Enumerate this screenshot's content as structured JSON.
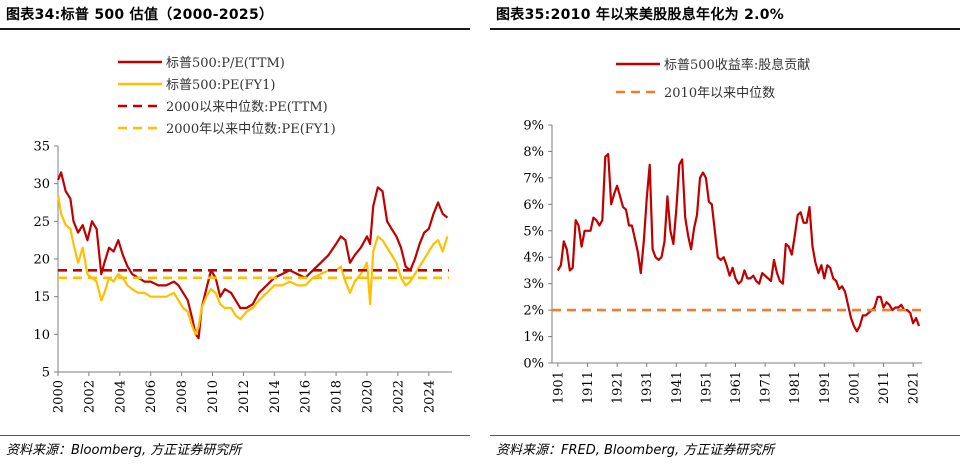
{
  "chart_data": [
    {
      "type": "line",
      "title": "图表34:标普 500 估值（2000-2025）",
      "source": "资料来源：Bloomberg, 方正证券研究所",
      "xlabel": "",
      "ylabel": "",
      "xlim": [
        2000,
        2025.5
      ],
      "ylim": [
        5,
        35
      ],
      "x_ticks": [
        "2000",
        "2002",
        "2004",
        "2006",
        "2008",
        "2010",
        "2012",
        "2014",
        "2016",
        "2018",
        "2020",
        "2022",
        "2024"
      ],
      "y_ticks": [
        "5",
        "10",
        "15",
        "20",
        "25",
        "30",
        "35"
      ],
      "grid": false,
      "legend_position": "top-left",
      "series": [
        {
          "name": "标普500:P/E(TTM)",
          "color": "#C00000",
          "style": "solid",
          "x": [
            2000,
            2000.2,
            2000.5,
            2000.8,
            2001,
            2001.3,
            2001.6,
            2001.9,
            2002.2,
            2002.5,
            2002.8,
            2003,
            2003.3,
            2003.6,
            2003.9,
            2004.2,
            2004.5,
            2004.8,
            2005.2,
            2005.6,
            2006,
            2006.5,
            2007,
            2007.5,
            2007.8,
            2008.1,
            2008.4,
            2008.7,
            2008.9,
            2009.1,
            2009.3,
            2009.6,
            2009.9,
            2010.2,
            2010.5,
            2010.8,
            2011.2,
            2011.5,
            2011.8,
            2012.2,
            2012.6,
            2013,
            2013.5,
            2014,
            2014.5,
            2015,
            2015.5,
            2016,
            2016.5,
            2017,
            2017.5,
            2018,
            2018.3,
            2018.6,
            2018.9,
            2019.2,
            2019.6,
            2020,
            2020.2,
            2020.4,
            2020.7,
            2021,
            2021.3,
            2021.6,
            2021.9,
            2022.2,
            2022.5,
            2022.8,
            2023.1,
            2023.4,
            2023.7,
            2024,
            2024.3,
            2024.6,
            2024.9,
            2025.2
          ],
          "values": [
            30.5,
            31.5,
            29,
            28,
            25,
            23.5,
            24.5,
            22.5,
            25,
            24,
            18,
            19.5,
            21.5,
            21,
            22.5,
            20.5,
            19,
            18,
            17.5,
            17,
            17,
            16.5,
            16.5,
            17,
            16.5,
            15.5,
            14.5,
            12,
            10,
            9.5,
            13.5,
            16,
            18.5,
            17.5,
            15,
            16,
            15.5,
            14.5,
            13.5,
            13.5,
            14,
            15.5,
            16.5,
            17.5,
            18,
            18.5,
            18,
            17.5,
            18.5,
            19.5,
            20.5,
            22,
            23,
            22.5,
            19.5,
            20.5,
            21.5,
            23,
            22,
            27,
            29.5,
            29,
            25,
            24,
            23,
            21.5,
            19,
            18.5,
            20,
            22,
            23.5,
            24,
            26,
            27.5,
            26,
            25.5
          ]
        },
        {
          "name": "标普500:PE(FY1)",
          "color": "#FFC000",
          "style": "solid",
          "x": [
            2000,
            2000.2,
            2000.5,
            2000.8,
            2001,
            2001.3,
            2001.6,
            2001.9,
            2002.2,
            2002.5,
            2002.8,
            2003,
            2003.3,
            2003.6,
            2003.9,
            2004.2,
            2004.5,
            2004.8,
            2005.2,
            2005.6,
            2006,
            2006.5,
            2007,
            2007.5,
            2007.8,
            2008.1,
            2008.4,
            2008.7,
            2008.9,
            2009.1,
            2009.3,
            2009.6,
            2009.9,
            2010.2,
            2010.5,
            2010.8,
            2011.2,
            2011.5,
            2011.8,
            2012.2,
            2012.6,
            2013,
            2013.5,
            2014,
            2014.5,
            2015,
            2015.5,
            2016,
            2016.5,
            2017,
            2017.5,
            2018,
            2018.3,
            2018.6,
            2018.9,
            2019.2,
            2019.6,
            2020,
            2020.2,
            2020.4,
            2020.7,
            2021,
            2021.3,
            2021.6,
            2021.9,
            2022.2,
            2022.5,
            2022.8,
            2023.1,
            2023.4,
            2023.7,
            2024,
            2024.3,
            2024.6,
            2024.9,
            2025.2
          ],
          "values": [
            28.5,
            26,
            24.5,
            24,
            22,
            19.5,
            21.5,
            18,
            17.5,
            17,
            14.5,
            15.5,
            17.5,
            17,
            18,
            17.5,
            16.5,
            16,
            15.5,
            15.5,
            15,
            15,
            15,
            15.5,
            14.5,
            13.5,
            13,
            11,
            10,
            11,
            13.5,
            15,
            16,
            15.5,
            14,
            13.5,
            13.5,
            12.5,
            12,
            13,
            13.5,
            14.5,
            15.5,
            16.5,
            16.5,
            17,
            16.5,
            16.5,
            17.5,
            18,
            18.5,
            18.5,
            19,
            17,
            15.5,
            17,
            18,
            19.5,
            14,
            21,
            23,
            22.5,
            21.5,
            20.5,
            19.5,
            17.5,
            16.5,
            17,
            18,
            19,
            20,
            21,
            22,
            22.5,
            21,
            23
          ]
        },
        {
          "name": "2000以来中位数:PE(TTM)",
          "color": "#C00000",
          "style": "dashed",
          "x": [
            2000,
            2025.3
          ],
          "values": [
            18.5,
            18.5
          ]
        },
        {
          "name": "2000年以来中位数:PE(FY1)",
          "color": "#FFC000",
          "style": "dashed",
          "x": [
            2000,
            2025.3
          ],
          "values": [
            17.5,
            17.5
          ]
        }
      ]
    },
    {
      "type": "line",
      "title": "图表35:2010 年以来美股股息年化为 2.0%",
      "source": "资料来源：FRED, Bloomberg, 方正证券研究所",
      "xlabel": "",
      "ylabel": "",
      "xlim": [
        1899,
        2024
      ],
      "ylim": [
        0,
        9
      ],
      "x_ticks": [
        "1901",
        "1911",
        "1921",
        "1931",
        "1941",
        "1951",
        "1961",
        "1971",
        "1981",
        "1991",
        "2001",
        "2011",
        "2021"
      ],
      "y_ticks": [
        "0%",
        "1%",
        "2%",
        "3%",
        "4%",
        "5%",
        "6%",
        "7%",
        "8%",
        "9%"
      ],
      "grid": false,
      "legend_position": "top-center",
      "series": [
        {
          "name": "标普500收益率:股息贡献",
          "color": "#C00000",
          "style": "solid",
          "x": [
            1901,
            1902,
            1903,
            1904,
            1905,
            1906,
            1907,
            1908,
            1909,
            1910,
            1911,
            1912,
            1913,
            1914,
            1915,
            1916,
            1917,
            1918,
            1919,
            1920,
            1921,
            1922,
            1923,
            1924,
            1925,
            1926,
            1927,
            1928,
            1929,
            1930,
            1931,
            1932,
            1933,
            1934,
            1935,
            1936,
            1937,
            1938,
            1939,
            1940,
            1941,
            1942,
            1943,
            1944,
            1945,
            1946,
            1947,
            1948,
            1949,
            1950,
            1951,
            1952,
            1953,
            1954,
            1955,
            1956,
            1957,
            1958,
            1959,
            1960,
            1961,
            1962,
            1963,
            1964,
            1965,
            1966,
            1967,
            1968,
            1969,
            1970,
            1971,
            1972,
            1973,
            1974,
            1975,
            1976,
            1977,
            1978,
            1979,
            1980,
            1981,
            1982,
            1983,
            1984,
            1985,
            1986,
            1987,
            1988,
            1989,
            1990,
            1991,
            1992,
            1993,
            1994,
            1995,
            1996,
            1997,
            1998,
            1999,
            2000,
            2001,
            2002,
            2003,
            2004,
            2005,
            2006,
            2007,
            2008,
            2009,
            2010,
            2011,
            2012,
            2013,
            2014,
            2015,
            2016,
            2017,
            2018,
            2019,
            2020,
            2021,
            2022,
            2023
          ],
          "values": [
            3.5,
            3.7,
            4.6,
            4.3,
            3.5,
            3.6,
            5.4,
            5.2,
            4.4,
            5,
            5,
            5,
            5.5,
            5.4,
            5.2,
            5.4,
            7.8,
            7.9,
            6,
            6.4,
            6.7,
            6.3,
            5.9,
            5.8,
            5.2,
            5.2,
            4.7,
            4.2,
            3.4,
            4.6,
            6.2,
            7.5,
            4.3,
            4,
            3.9,
            4,
            4.6,
            6.3,
            5,
            4.5,
            5.8,
            7.5,
            7.7,
            5.5,
            4.8,
            4.3,
            5.1,
            5.6,
            7,
            7.2,
            7,
            6.1,
            6,
            5,
            4,
            3.9,
            4,
            3.7,
            3.3,
            3.6,
            3.2,
            3,
            3.1,
            3.5,
            3.2,
            3.2,
            3.3,
            3.1,
            3,
            3.4,
            3.3,
            3.2,
            3.1,
            3.9,
            3.4,
            3.1,
            3,
            4.5,
            4.4,
            4.1,
            4.8,
            5.6,
            5.7,
            5.3,
            5.3,
            5.9,
            4.4,
            3.8,
            3.4,
            3.7,
            3.2,
            3.7,
            3.6,
            3.2,
            3.1,
            2.8,
            2.9,
            2.7,
            2.2,
            1.7,
            1.4,
            1.2,
            1.4,
            1.8,
            1.8,
            1.9,
            2,
            2.1,
            2.5,
            2.5,
            2.1,
            2.3,
            2.2,
            2,
            2.1,
            2.1,
            2.2,
            2,
            2,
            1.9,
            1.5,
            1.7,
            1.4
          ]
        },
        {
          "name": "2010年以来中位数",
          "color": "#ED7D31",
          "style": "dashed",
          "x": [
            1899,
            2024
          ],
          "values": [
            2.0,
            2.0
          ]
        }
      ]
    }
  ]
}
